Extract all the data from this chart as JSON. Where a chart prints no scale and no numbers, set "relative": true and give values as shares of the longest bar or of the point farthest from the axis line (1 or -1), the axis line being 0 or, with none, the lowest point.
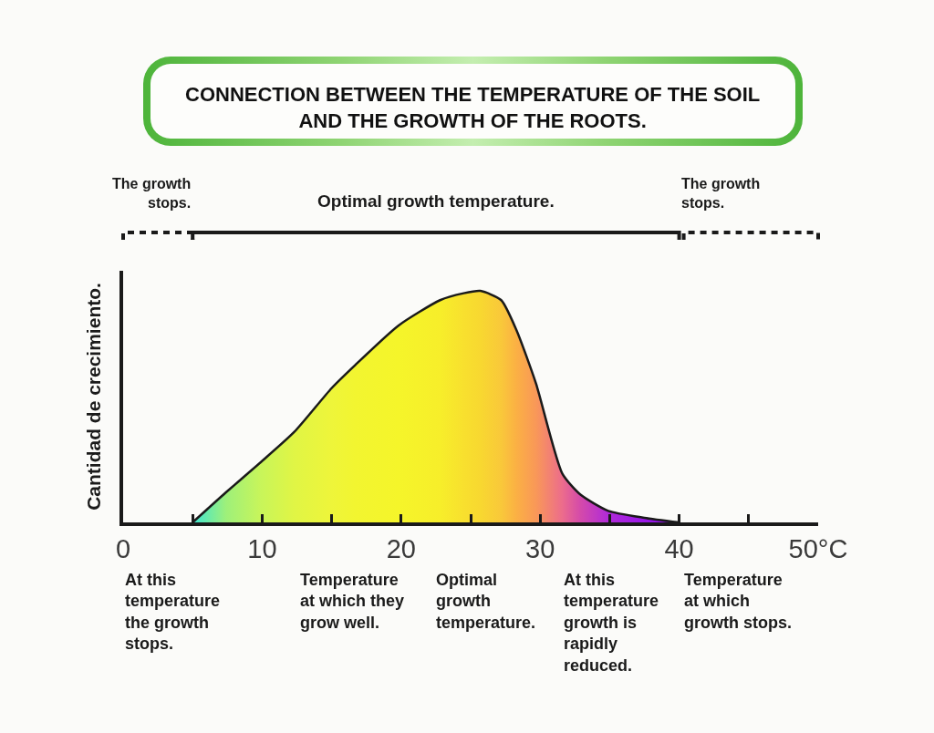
{
  "chart_data": {
    "type": "area",
    "title": "CONNECTION BETWEEN THE TEMPERATURE OF THE SOIL AND THE GROWTH OF THE ROOTS.",
    "ylabel": "Cantidad de crecimiento.",
    "relative": true,
    "x": [
      5,
      7.4,
      9.9,
      12.3,
      15,
      16.7,
      19.8,
      22.8,
      24.5,
      25.7,
      27.2,
      28.3,
      29.7,
      31.6,
      32.9,
      34.9,
      37.5,
      40
    ],
    "series": [
      {
        "color": "#1a1a1a",
        "colors": [
          "#3de6d2",
          "#9ef07a",
          "#c8f55a",
          "#e0f545",
          "#eef53a",
          "#f2f530",
          "#f5f52a",
          "#f7ee2a",
          "#f8e02e",
          "#f8d830",
          "#f9c83a",
          "#fbb044",
          "#f99858",
          "#ec6c8c",
          "#d44aaa",
          "#b02ad8",
          "#9a18e8",
          "#8810e0"
        ],
        "values": [
          0,
          0.13,
          0.26,
          0.39,
          0.58,
          0.68,
          0.85,
          0.96,
          0.99,
          1,
          0.96,
          0.83,
          0.6,
          0.21,
          0.12,
          0.05,
          0.02,
          0
        ]
      }
    ],
    "xlim": [
      0,
      50
    ],
    "xticks": [
      0,
      {
        "value": 5,
        "label": null
      },
      10,
      {
        "value": 15,
        "label": null
      },
      20,
      {
        "value": 25,
        "label": null
      },
      30,
      {
        "value": 35,
        "label": null
      },
      40,
      {
        "value": 45,
        "label": null
      },
      {
        "value": 50,
        "label": "50°C"
      }
    ],
    "annotations": [
      "The growth stops.",
      "Optimal growth temperature.",
      "The growth stops.",
      "At this temperature the growth stops.",
      "Temperature at which they grow well.",
      "Optimal growth temperature.",
      "At this temperature growth is rapidly reduced.",
      "Temperature at which growth stops."
    ]
  }
}
